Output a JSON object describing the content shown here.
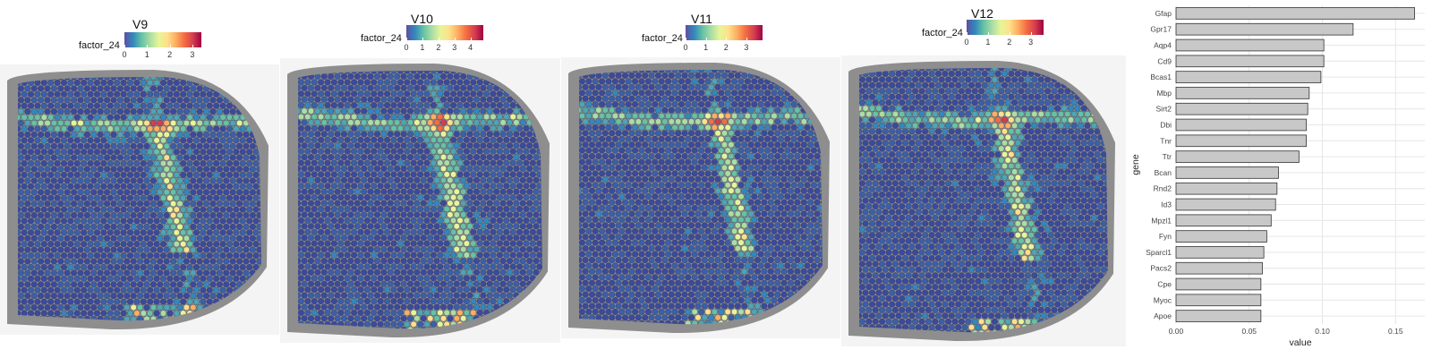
{
  "panels": [
    {
      "title": "V9",
      "legend_title": "factor_24",
      "ticks": [
        "0",
        "1",
        "2",
        "3"
      ],
      "max": 3.4
    },
    {
      "title": "V10",
      "legend_title": "factor_24",
      "ticks": [
        "0",
        "1",
        "2",
        "3",
        "4"
      ],
      "max": 4.8
    },
    {
      "title": "V11",
      "legend_title": "factor_24",
      "ticks": [
        "0",
        "1",
        "2",
        "3"
      ],
      "max": 3.8
    },
    {
      "title": "V12",
      "legend_title": "factor_24",
      "ticks": [
        "0",
        "1",
        "2",
        "3"
      ],
      "max": 3.6
    }
  ],
  "colors": {
    "bar_fill": "#c8c8c8",
    "bar_stroke": "#333333",
    "grid": "#e6e6e6",
    "spot_low": "#3b4a9c",
    "tissue_bg": "#9a9a9a"
  },
  "chart_data": {
    "type": "bar",
    "orientation": "horizontal",
    "xlabel": "value",
    "ylabel": "gene",
    "xlim": [
      0,
      0.17
    ],
    "xticks": [
      "0.00",
      "0.05",
      "0.10",
      "0.15"
    ],
    "xtick_values": [
      0,
      0.05,
      0.1,
      0.15
    ],
    "categories": [
      "Gfap",
      "Gpr17",
      "Aqp4",
      "Cd9",
      "Bcas1",
      "Mbp",
      "Sirt2",
      "Dbi",
      "Tnr",
      "Ttr",
      "Bcan",
      "Rnd2",
      "Id3",
      "Mpzl1",
      "Fyn",
      "Sparcl1",
      "Pacs2",
      "Cpe",
      "Myoc",
      "Apoe"
    ],
    "values": [
      0.163,
      0.121,
      0.101,
      0.101,
      0.099,
      0.091,
      0.09,
      0.089,
      0.089,
      0.084,
      0.07,
      0.069,
      0.068,
      0.065,
      0.062,
      0.06,
      0.059,
      0.058,
      0.058,
      0.058
    ]
  }
}
